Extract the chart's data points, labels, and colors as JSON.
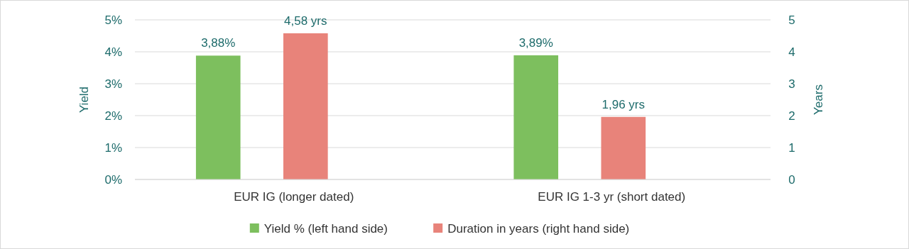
{
  "chart_data": {
    "type": "bar",
    "categories": [
      "EUR IG (longer dated)",
      "EUR IG 1-3 yr (short dated)"
    ],
    "series": [
      {
        "name": "Yield % (left hand side)",
        "color": "#7dbf5e",
        "values": [
          3.88,
          3.89
        ],
        "value_labels": [
          "3,88%",
          "3,89%"
        ]
      },
      {
        "name": "Duration in years (right hand side)",
        "color": "#e8837a",
        "values": [
          4.58,
          1.96
        ],
        "value_labels": [
          "4,58 yrs",
          "1,96 yrs"
        ],
        "axis": "y2"
      }
    ],
    "ylabel": "Yield",
    "y2label": "Years",
    "ylim": [
      0,
      5
    ],
    "yticks": [
      {
        "value": 0,
        "label": "0%"
      },
      {
        "value": 1,
        "label": "1%"
      },
      {
        "value": 2,
        "label": "2%"
      },
      {
        "value": 3,
        "label": "3%"
      },
      {
        "value": 4,
        "label": "4%"
      },
      {
        "value": 5,
        "label": "5%"
      }
    ],
    "y2lim": [
      0,
      5
    ],
    "y2ticks": [
      0,
      1,
      2,
      3,
      4,
      5
    ],
    "grid": "y",
    "legend": "bottom"
  }
}
